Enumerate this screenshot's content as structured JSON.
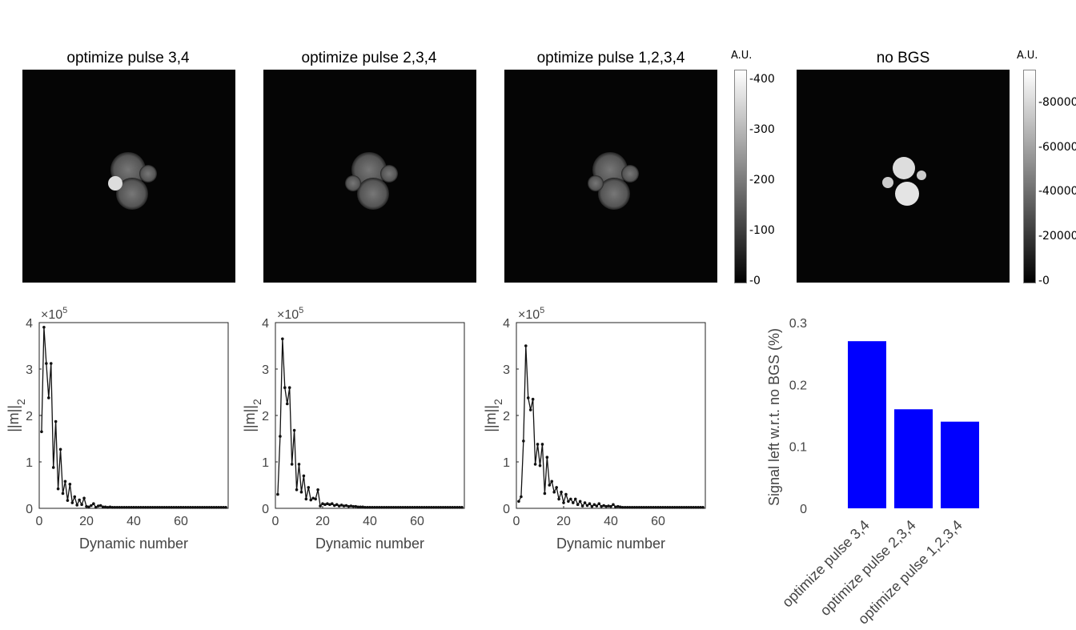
{
  "image_panels": [
    {
      "title": "optimize pulse 3,4"
    },
    {
      "title": "optimize pulse 2,3,4"
    },
    {
      "title": "optimize pulse 1,2,3,4"
    },
    {
      "title": "no BGS"
    }
  ],
  "colorbars": [
    {
      "label": "A.U.",
      "ticks": [
        "400",
        "300",
        "200",
        "100",
        "0"
      ],
      "values": [
        400,
        300,
        200,
        100,
        0
      ],
      "max": 420
    },
    {
      "label": "A.U.",
      "ticks": [
        "80000",
        "60000",
        "40000",
        "20000",
        "0"
      ],
      "values": [
        80000,
        60000,
        40000,
        20000,
        0
      ],
      "max": 95000
    }
  ],
  "chart_data": [
    {
      "type": "line",
      "title": "optimize pulse 3,4",
      "xlabel": "Dynamic number",
      "ylabel": "||m||_2",
      "ylabel_main": "||m||",
      "ylabel_sub": "2",
      "exponent": "×10",
      "exponent_power": "5",
      "xlim": [
        0,
        80
      ],
      "ylim": [
        0,
        4
      ],
      "xticks": [
        "0",
        "20",
        "40",
        "60"
      ],
      "yticks": [
        "0",
        "1",
        "2",
        "3",
        "4"
      ],
      "y": [
        1.65,
        3.9,
        3.12,
        2.38,
        3.12,
        0.88,
        1.87,
        0.42,
        1.27,
        0.32,
        0.58,
        0.17,
        0.52,
        0.12,
        0.25,
        0.07,
        0.18,
        0.08,
        0.22,
        0.04,
        0.03,
        0.06,
        0.1,
        0.02,
        0.05,
        0.06,
        0.03,
        0.03,
        0.02,
        0.03,
        0.02,
        0.02,
        0.02
      ]
    },
    {
      "type": "line",
      "title": "optimize pulse 2,3,4",
      "xlabel": "Dynamic number",
      "ylabel": "||m||_2",
      "ylabel_main": "||m||",
      "ylabel_sub": "2",
      "exponent": "×10",
      "exponent_power": "5",
      "xlim": [
        0,
        80
      ],
      "ylim": [
        0,
        4
      ],
      "xticks": [
        "0",
        "20",
        "40",
        "60"
      ],
      "yticks": [
        "0",
        "1",
        "2",
        "3",
        "4"
      ],
      "y": [
        0.3,
        1.55,
        3.65,
        2.6,
        2.25,
        2.6,
        0.95,
        1.68,
        0.4,
        0.95,
        0.35,
        0.7,
        0.2,
        0.45,
        0.18,
        0.22,
        0.2,
        0.4,
        0.05,
        0.1,
        0.08,
        0.1,
        0.08,
        0.1,
        0.06,
        0.08,
        0.05,
        0.07,
        0.05,
        0.06,
        0.04,
        0.05,
        0.04,
        0.04,
        0.03,
        0.03,
        0.03
      ]
    },
    {
      "type": "line",
      "title": "optimize pulse 1,2,3,4",
      "xlabel": "Dynamic number",
      "ylabel": "||m||_2",
      "ylabel_main": "||m||",
      "ylabel_sub": "2",
      "exponent": "×10",
      "exponent_power": "5",
      "xlim": [
        0,
        80
      ],
      "ylim": [
        0,
        4
      ],
      "xticks": [
        "0",
        "20",
        "40",
        "60"
      ],
      "yticks": [
        "0",
        "1",
        "2",
        "3",
        "4"
      ],
      "y": [
        0.15,
        0.25,
        1.45,
        3.5,
        2.38,
        2.12,
        2.35,
        0.95,
        1.38,
        0.92,
        1.38,
        0.32,
        1.1,
        0.5,
        0.58,
        0.35,
        0.45,
        0.2,
        0.35,
        0.12,
        0.3,
        0.15,
        0.2,
        0.12,
        0.2,
        0.08,
        0.15,
        0.05,
        0.12,
        0.06,
        0.1,
        0.04,
        0.08,
        0.05,
        0.1,
        0.04,
        0.06,
        0.04,
        0.05,
        0.04,
        0.08,
        0.03,
        0.04,
        0.03
      ]
    },
    {
      "type": "bar",
      "categories": [
        "optimize pulse 3,4",
        "optimize pulse 2,3,4",
        "optimize pulse 1,2,3,4"
      ],
      "values": [
        0.27,
        0.16,
        0.14
      ],
      "ylabel": "Signal left w.r.t. no BGS (%)",
      "ylim": [
        0,
        0.3
      ],
      "yticks": [
        "0",
        "0.1",
        "0.2",
        "0.3"
      ],
      "color": "#0000ff"
    }
  ]
}
